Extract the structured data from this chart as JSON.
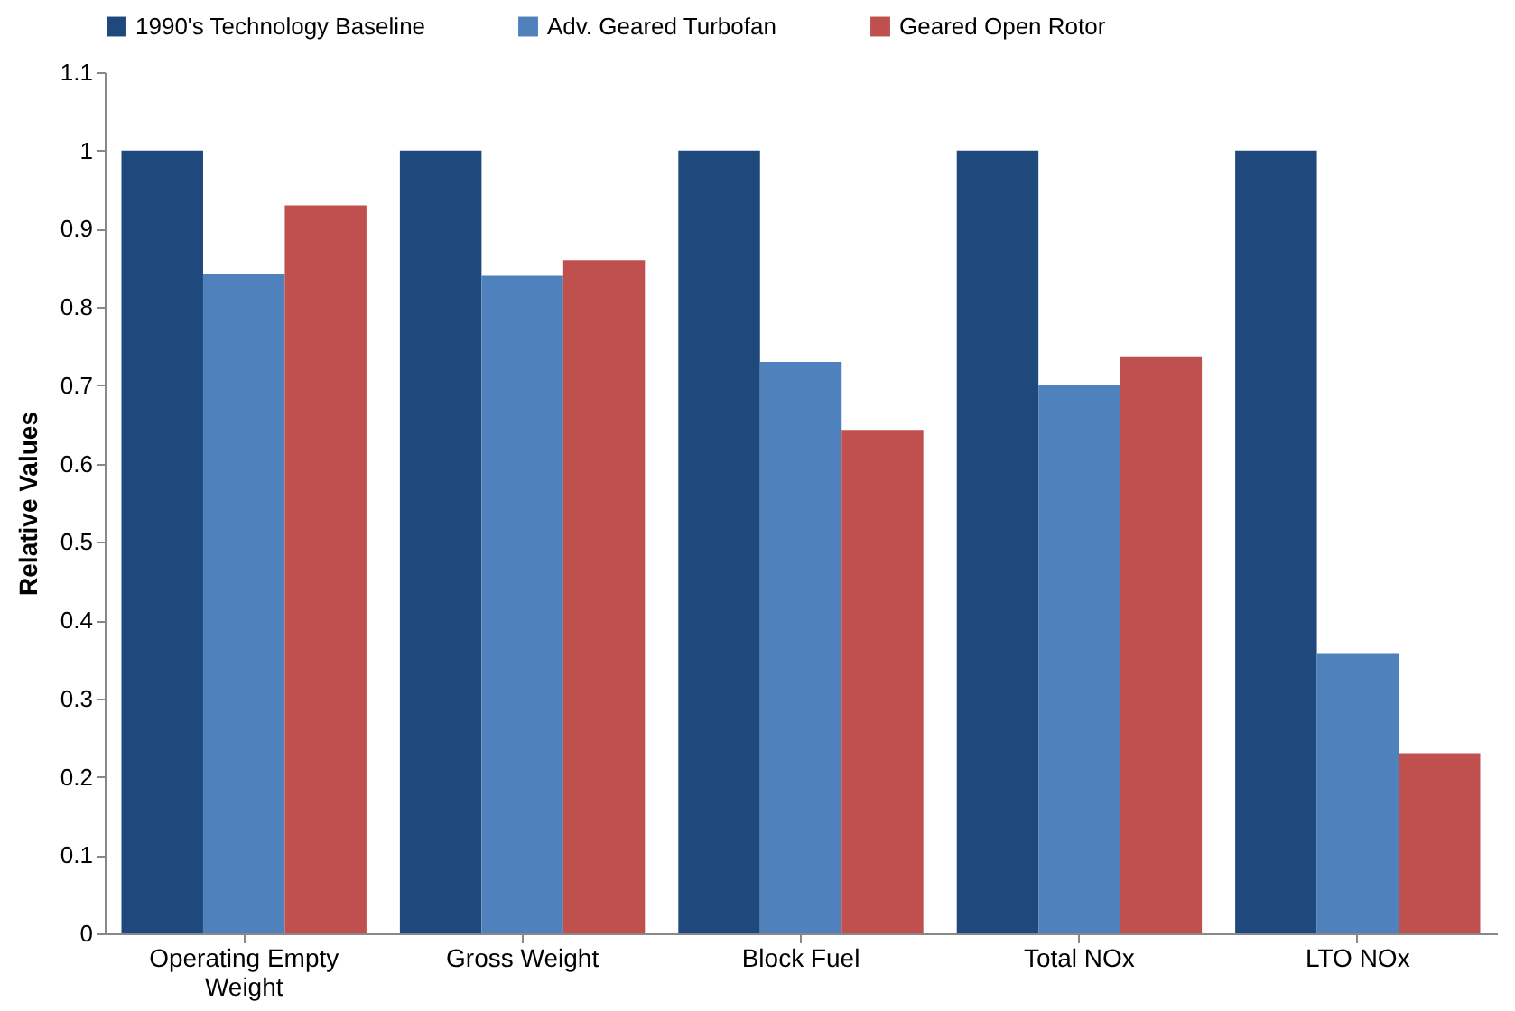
{
  "chart_data": {
    "type": "bar",
    "ylabel": "Relative Values",
    "categories": [
      "Operating Empty Weight",
      "Gross Weight",
      "Block Fuel",
      "Total NOx",
      "LTO NOx"
    ],
    "series": [
      {
        "name": "1990's Technology Baseline",
        "color": "#1f497d",
        "values": [
          1,
          1,
          1,
          1,
          1
        ]
      },
      {
        "name": "Adv. Geared Turbofan",
        "color": "#4f81bd",
        "values": [
          0.843,
          0.84,
          0.73,
          0.7,
          0.358
        ]
      },
      {
        "name": "Geared Open Rotor",
        "color": "#c0504d",
        "values": [
          0.93,
          0.86,
          0.643,
          0.737,
          0.23
        ]
      }
    ],
    "ylim": [
      0,
      1.1
    ],
    "yticks": [
      0,
      0.1,
      0.2,
      0.3,
      0.4,
      0.5,
      0.6,
      0.7,
      0.8,
      0.9,
      1,
      1.1
    ],
    "legend": "top"
  }
}
